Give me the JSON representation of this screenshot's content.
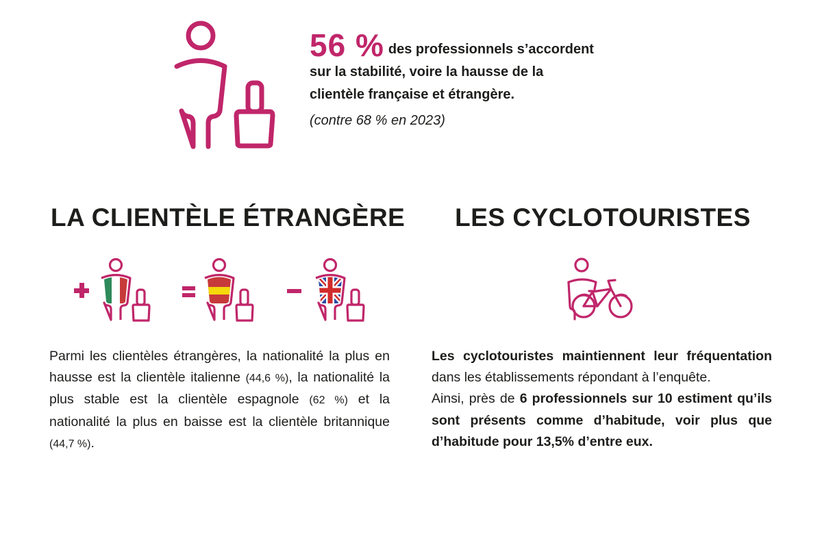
{
  "colors": {
    "accent": "#c0266a",
    "text": "#1d1d1b",
    "italy_green": "#2e8a5a",
    "italy_red": "#c73a3a",
    "spain_red": "#c73a3a",
    "spain_yellow": "#f5d90a",
    "uk_blue": "#2a4aa8",
    "uk_red": "#d12b2b"
  },
  "hero": {
    "icon": "traveler-with-luggage-icon",
    "percentage": "56 %",
    "line1": "des professionnels s’accordent",
    "line2": "sur la stabilité, voire la hausse de la",
    "line3": "clientèle française et étrangère.",
    "note": "(contre 68 % en 2023)"
  },
  "foreign": {
    "title": "LA CLIENTÈLE ÉTRANGÈRE",
    "indicators": [
      {
        "symbol": "+",
        "meaning": "hausse",
        "flag": "italy-flag-icon"
      },
      {
        "symbol": "=",
        "meaning": "stable",
        "flag": "spain-flag-icon"
      },
      {
        "symbol": "-",
        "meaning": "baisse",
        "flag": "uk-flag-icon"
      }
    ],
    "paragraph": {
      "p1": "Parmi les clientèles étrangères, la nationalité la plus en hausse est la clientèle italienne ",
      "pct1": "(44,6 %)",
      "p2": ", la nationalité la plus stable est la clientèle espagnole ",
      "pct2": "(62 %)",
      "p3": " et la nationalité la plus en baisse est la clientèle britannique ",
      "pct3": "(44,7 %)",
      "p4": "."
    }
  },
  "cyclists": {
    "title": "LES CYCLOTOURISTES",
    "icon": "cyclist-with-bicycle-icon",
    "paragraph": {
      "b1": "Les cyclotouristes maintiennent leur fréquentation",
      "t1": " dans les établissements répondant à l’enquête.",
      "t2": "Ainsi, près de ",
      "b2": "6 professionnels sur 10 estiment qu’ils sont présents comme d’habitude, voir plus que d’habitude pour 13,5% d’entre eux."
    }
  }
}
